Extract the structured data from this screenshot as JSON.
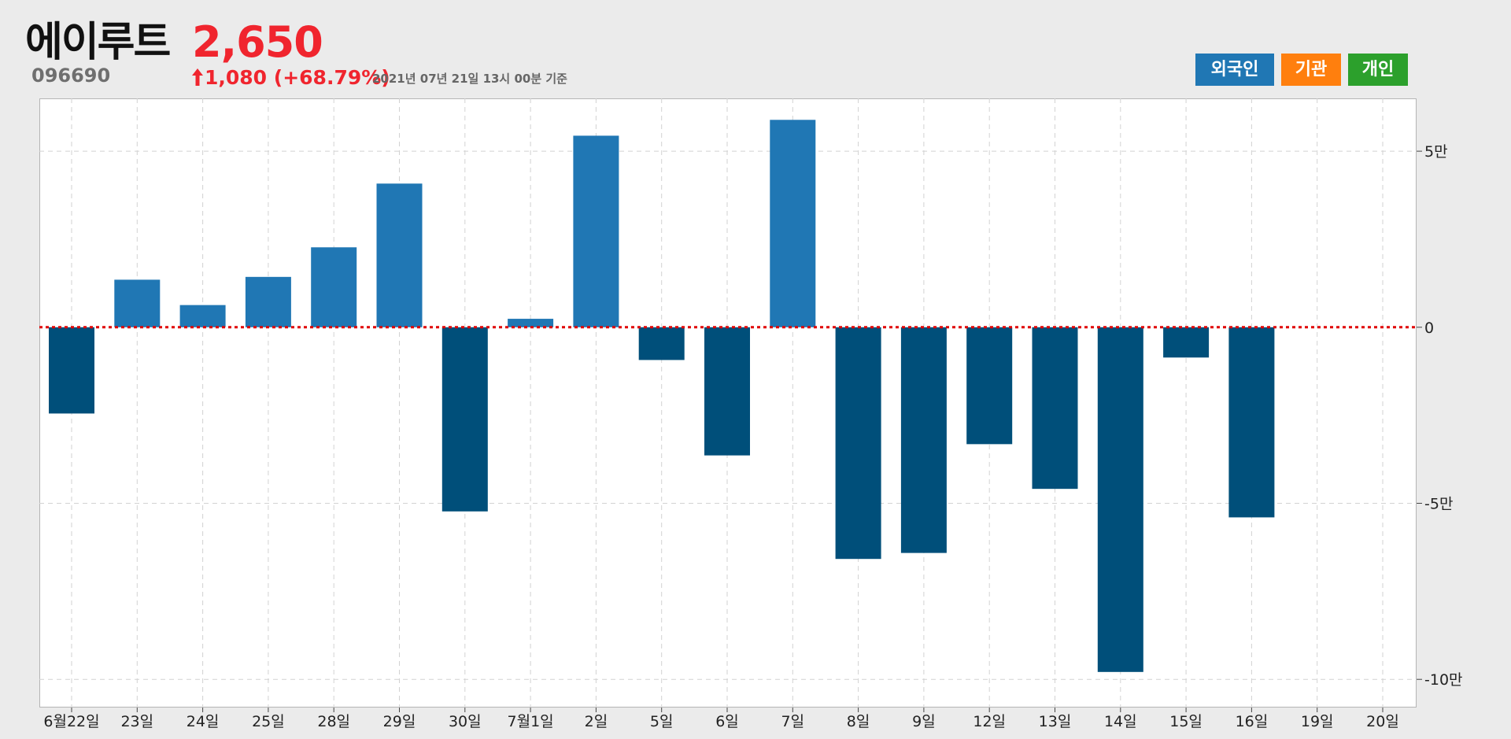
{
  "header": {
    "stock_name": "에이루트",
    "price": "2,650",
    "code": "096690",
    "change": "1,080 (+68.79%)",
    "as_of": "2021년 07년 21일 13시 00분 기준"
  },
  "legend": {
    "items": [
      {
        "label": "외국인",
        "color": "#2077b4"
      },
      {
        "label": "기관",
        "color": "#ff7f0e"
      },
      {
        "label": "개인",
        "color": "#2ca02c"
      }
    ]
  },
  "colors": {
    "positive_bar": "#2077b4",
    "negative_bar": "#004f7a",
    "zero_line": "#e00000",
    "price_up": "#f0252e"
  },
  "chart_data": {
    "type": "bar",
    "series": [
      {
        "name": "외국인",
        "values": [
          -24500,
          13500,
          6300,
          14300,
          22700,
          40800,
          -52300,
          2400,
          54400,
          -9300,
          -36400,
          58900,
          -65800,
          -64100,
          -33200,
          -45900,
          -97900,
          -8600,
          -54000,
          null,
          null
        ]
      }
    ],
    "categories": [
      "6월22일",
      "23일",
      "24일",
      "25일",
      "28일",
      "29일",
      "30일",
      "7월1일",
      "2일",
      "5일",
      "6일",
      "7일",
      "8일",
      "9일",
      "12일",
      "13일",
      "14일",
      "15일",
      "16일",
      "19일",
      "20일"
    ],
    "ylim": [
      -108000,
      65000
    ],
    "yticks": [
      50000,
      0,
      -50000,
      -100000
    ],
    "ytick_labels": [
      "5만",
      "0",
      "-5만",
      "-10만"
    ],
    "grid": true,
    "zero_line": "dotted"
  }
}
